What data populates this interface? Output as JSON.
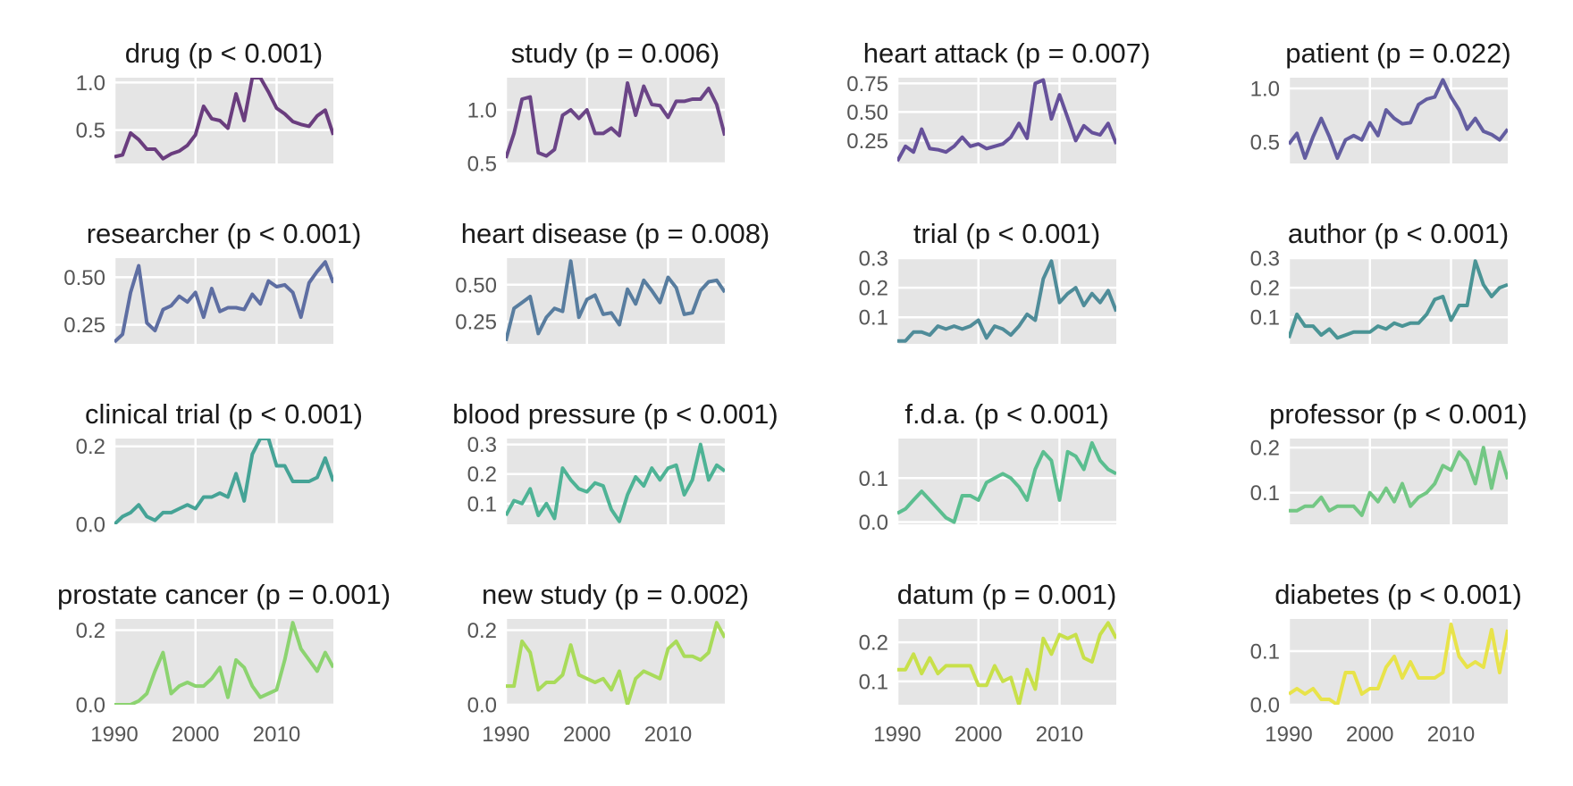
{
  "chart_data": {
    "type": "line",
    "layout": "4x4 small multiples",
    "panel_background": "#e5e5e5",
    "grid": true,
    "grid_color": "#ffffff",
    "x": [
      1990,
      1991,
      1992,
      1993,
      1994,
      1995,
      1996,
      1997,
      1998,
      1999,
      2000,
      2001,
      2002,
      2003,
      2004,
      2005,
      2006,
      2007,
      2008,
      2009,
      2010,
      2011,
      2012,
      2013,
      2014,
      2015,
      2016,
      2017
    ],
    "xlim": [
      1990,
      2017
    ],
    "x_ticks": [
      1990,
      2000,
      2010
    ],
    "panels": [
      {
        "title": "drug (p < 0.001)",
        "color": "#6a3d7e",
        "ylim": [
          0.15,
          1.05
        ],
        "y_ticks": [
          0.5,
          1.0
        ],
        "tick_labels": [
          "0.5",
          "1.0"
        ],
        "values": [
          0.22,
          0.24,
          0.47,
          0.4,
          0.3,
          0.3,
          0.2,
          0.25,
          0.28,
          0.34,
          0.45,
          0.75,
          0.62,
          0.6,
          0.52,
          0.88,
          0.6,
          1.05,
          1.05,
          0.9,
          0.73,
          0.67,
          0.59,
          0.56,
          0.54,
          0.65,
          0.71,
          0.45
        ]
      },
      {
        "title": "study (p = 0.006)",
        "color": "#6b4587",
        "ylim": [
          0.5,
          1.3
        ],
        "y_ticks": [
          0.5,
          1.0
        ],
        "tick_labels": [
          "0.5",
          "1.0"
        ],
        "values": [
          0.55,
          0.78,
          1.1,
          1.12,
          0.6,
          0.57,
          0.63,
          0.95,
          1.0,
          0.92,
          1.0,
          0.78,
          0.78,
          0.83,
          0.76,
          1.25,
          0.95,
          1.22,
          1.05,
          1.04,
          0.93,
          1.08,
          1.08,
          1.1,
          1.1,
          1.2,
          1.05,
          0.76
        ]
      },
      {
        "title": "heart attack (p = 0.007)",
        "color": "#66519a",
        "ylim": [
          0.05,
          0.8
        ],
        "y_ticks": [
          0.25,
          0.5,
          0.75
        ],
        "tick_labels": [
          "0.25",
          "0.50",
          "0.75"
        ],
        "values": [
          0.07,
          0.2,
          0.15,
          0.35,
          0.18,
          0.17,
          0.15,
          0.2,
          0.28,
          0.2,
          0.22,
          0.18,
          0.2,
          0.22,
          0.28,
          0.4,
          0.27,
          0.75,
          0.78,
          0.44,
          0.65,
          0.45,
          0.25,
          0.38,
          0.32,
          0.3,
          0.4,
          0.22
        ]
      },
      {
        "title": "patient (p = 0.022)",
        "color": "#635da0",
        "ylim": [
          0.3,
          1.1
        ],
        "y_ticks": [
          0.5,
          1.0
        ],
        "tick_labels": [
          "0.5",
          "1.0"
        ],
        "values": [
          0.48,
          0.58,
          0.35,
          0.55,
          0.72,
          0.55,
          0.35,
          0.52,
          0.56,
          0.52,
          0.68,
          0.56,
          0.8,
          0.72,
          0.67,
          0.68,
          0.85,
          0.9,
          0.92,
          1.08,
          0.92,
          0.8,
          0.62,
          0.72,
          0.6,
          0.57,
          0.52,
          0.62
        ]
      },
      {
        "title": "researcher (p < 0.001)",
        "color": "#5e6ea2",
        "ylim": [
          0.15,
          0.6
        ],
        "y_ticks": [
          0.25,
          0.5
        ],
        "tick_labels": [
          "0.25",
          "0.50"
        ],
        "values": [
          0.16,
          0.2,
          0.42,
          0.56,
          0.26,
          0.22,
          0.33,
          0.35,
          0.4,
          0.37,
          0.42,
          0.29,
          0.44,
          0.32,
          0.34,
          0.34,
          0.33,
          0.41,
          0.36,
          0.48,
          0.45,
          0.46,
          0.42,
          0.29,
          0.47,
          0.53,
          0.58,
          0.47
        ]
      },
      {
        "title": "heart disease (p = 0.008)",
        "color": "#587d9f",
        "ylim": [
          0.1,
          0.68
        ],
        "y_ticks": [
          0.25,
          0.5
        ],
        "tick_labels": [
          "0.25",
          "0.50"
        ],
        "values": [
          0.12,
          0.34,
          0.38,
          0.42,
          0.17,
          0.28,
          0.34,
          0.32,
          0.66,
          0.28,
          0.4,
          0.43,
          0.3,
          0.31,
          0.23,
          0.47,
          0.37,
          0.53,
          0.46,
          0.38,
          0.55,
          0.48,
          0.3,
          0.31,
          0.46,
          0.52,
          0.53,
          0.45
        ]
      },
      {
        "title": "trial (p < 0.001)",
        "color": "#4f8c99",
        "ylim": [
          0.01,
          0.3
        ],
        "y_ticks": [
          0.1,
          0.2,
          0.3
        ],
        "tick_labels": [
          "0.1",
          "0.2",
          "0.3"
        ],
        "values": [
          0.02,
          0.02,
          0.05,
          0.05,
          0.04,
          0.07,
          0.06,
          0.07,
          0.06,
          0.07,
          0.09,
          0.03,
          0.07,
          0.06,
          0.04,
          0.07,
          0.11,
          0.09,
          0.23,
          0.29,
          0.15,
          0.18,
          0.2,
          0.14,
          0.18,
          0.15,
          0.19,
          0.12
        ]
      },
      {
        "title": "author (p < 0.001)",
        "color": "#4a9495",
        "ylim": [
          0.01,
          0.3
        ],
        "y_ticks": [
          0.1,
          0.2,
          0.3
        ],
        "tick_labels": [
          "0.1",
          "0.2",
          "0.3"
        ],
        "values": [
          0.03,
          0.11,
          0.07,
          0.07,
          0.04,
          0.06,
          0.03,
          0.04,
          0.05,
          0.05,
          0.05,
          0.07,
          0.06,
          0.08,
          0.07,
          0.08,
          0.08,
          0.11,
          0.16,
          0.17,
          0.09,
          0.14,
          0.14,
          0.29,
          0.21,
          0.17,
          0.2,
          0.21
        ]
      },
      {
        "title": "clinical trial (p < 0.001)",
        "color": "#45a396",
        "ylim": [
          0.0,
          0.22
        ],
        "y_ticks": [
          0.0,
          0.2
        ],
        "tick_labels": [
          "0.0",
          "0.2"
        ],
        "values": [
          0.0,
          0.02,
          0.03,
          0.05,
          0.02,
          0.01,
          0.03,
          0.03,
          0.04,
          0.05,
          0.04,
          0.07,
          0.07,
          0.08,
          0.07,
          0.13,
          0.06,
          0.18,
          0.22,
          0.22,
          0.15,
          0.15,
          0.11,
          0.11,
          0.11,
          0.12,
          0.17,
          0.11
        ]
      },
      {
        "title": "blood pressure (p < 0.001)",
        "color": "#4eb395",
        "ylim": [
          0.03,
          0.32
        ],
        "y_ticks": [
          0.1,
          0.2,
          0.3
        ],
        "tick_labels": [
          "0.1",
          "0.2",
          "0.3"
        ],
        "values": [
          0.06,
          0.11,
          0.1,
          0.15,
          0.06,
          0.1,
          0.05,
          0.22,
          0.18,
          0.15,
          0.14,
          0.17,
          0.16,
          0.08,
          0.04,
          0.13,
          0.19,
          0.16,
          0.22,
          0.18,
          0.22,
          0.23,
          0.13,
          0.18,
          0.3,
          0.18,
          0.23,
          0.21
        ]
      },
      {
        "title": "f.d.a. (p < 0.001)",
        "color": "#5bbe90",
        "ylim": [
          -0.005,
          0.19
        ],
        "y_ticks": [
          0.0,
          0.1
        ],
        "tick_labels": [
          "0.0",
          "0.1"
        ],
        "values": [
          0.02,
          0.03,
          0.05,
          0.07,
          0.05,
          0.03,
          0.01,
          0.0,
          0.06,
          0.06,
          0.05,
          0.09,
          0.1,
          0.11,
          0.1,
          0.08,
          0.05,
          0.12,
          0.16,
          0.14,
          0.05,
          0.16,
          0.15,
          0.12,
          0.18,
          0.14,
          0.12,
          0.11
        ]
      },
      {
        "title": "professor (p < 0.001)",
        "color": "#73c784",
        "ylim": [
          0.03,
          0.22
        ],
        "y_ticks": [
          0.1,
          0.2
        ],
        "tick_labels": [
          "0.1",
          "0.2"
        ],
        "values": [
          0.06,
          0.06,
          0.07,
          0.07,
          0.09,
          0.06,
          0.07,
          0.07,
          0.07,
          0.05,
          0.1,
          0.08,
          0.11,
          0.08,
          0.12,
          0.07,
          0.09,
          0.1,
          0.12,
          0.16,
          0.15,
          0.19,
          0.17,
          0.12,
          0.2,
          0.11,
          0.19,
          0.13
        ]
      },
      {
        "title": "prostate cancer (p = 0.001)",
        "color": "#8cd370",
        "ylim": [
          0.0,
          0.23
        ],
        "y_ticks": [
          0.0,
          0.2
        ],
        "tick_labels": [
          "0.0",
          "0.2"
        ],
        "values": [
          0.0,
          0.0,
          0.0,
          0.01,
          0.03,
          0.09,
          0.14,
          0.03,
          0.05,
          0.06,
          0.05,
          0.05,
          0.07,
          0.1,
          0.02,
          0.12,
          0.1,
          0.05,
          0.02,
          0.03,
          0.04,
          0.12,
          0.22,
          0.15,
          0.12,
          0.09,
          0.14,
          0.1
        ]
      },
      {
        "title": "new study (p = 0.002)",
        "color": "#a9db5a",
        "ylim": [
          0.0,
          0.23
        ],
        "y_ticks": [
          0.0,
          0.2
        ],
        "tick_labels": [
          "0.0",
          "0.2"
        ],
        "values": [
          0.05,
          0.05,
          0.17,
          0.14,
          0.04,
          0.06,
          0.06,
          0.08,
          0.16,
          0.08,
          0.07,
          0.06,
          0.07,
          0.04,
          0.09,
          0.0,
          0.07,
          0.09,
          0.08,
          0.07,
          0.15,
          0.17,
          0.13,
          0.13,
          0.12,
          0.14,
          0.22,
          0.18
        ]
      },
      {
        "title": "datum (p = 0.001)",
        "color": "#c8e04a",
        "ylim": [
          0.04,
          0.26
        ],
        "y_ticks": [
          0.1,
          0.2
        ],
        "tick_labels": [
          "0.1",
          "0.2"
        ],
        "values": [
          0.13,
          0.13,
          0.17,
          0.12,
          0.16,
          0.12,
          0.14,
          0.14,
          0.14,
          0.14,
          0.09,
          0.09,
          0.14,
          0.1,
          0.11,
          0.04,
          0.13,
          0.08,
          0.21,
          0.17,
          0.22,
          0.21,
          0.22,
          0.16,
          0.15,
          0.22,
          0.25,
          0.21
        ]
      },
      {
        "title": "diabetes (p < 0.001)",
        "color": "#e8e34a",
        "ylim": [
          0.0,
          0.16
        ],
        "y_ticks": [
          0.0,
          0.1
        ],
        "tick_labels": [
          "0.0",
          "0.1"
        ],
        "values": [
          0.02,
          0.03,
          0.02,
          0.03,
          0.01,
          0.01,
          0.0,
          0.06,
          0.06,
          0.02,
          0.03,
          0.03,
          0.07,
          0.09,
          0.05,
          0.08,
          0.05,
          0.05,
          0.05,
          0.06,
          0.15,
          0.09,
          0.07,
          0.08,
          0.07,
          0.14,
          0.06,
          0.14
        ]
      }
    ]
  }
}
